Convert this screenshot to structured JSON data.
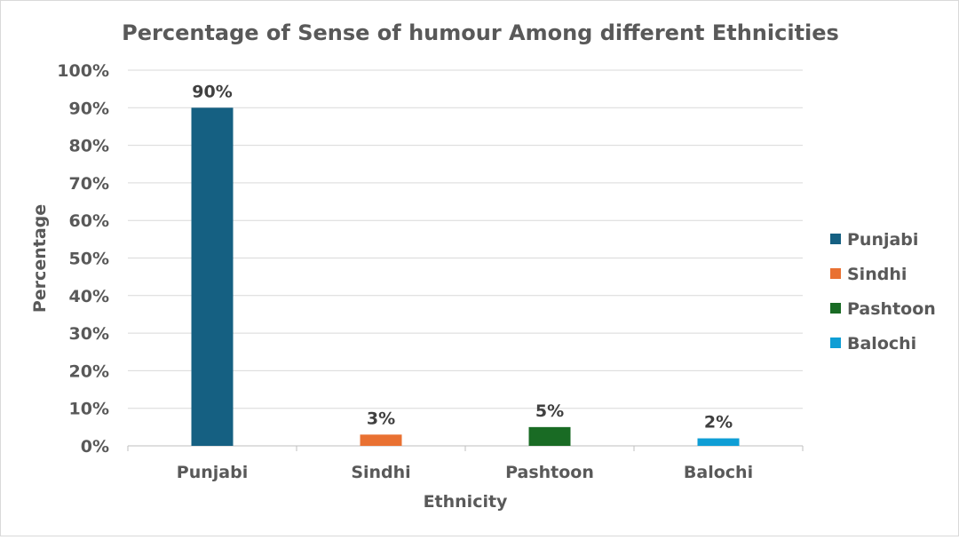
{
  "chart_data": {
    "type": "bar",
    "title": "Percentage of Sense of humour Among different Ethnicities",
    "xlabel": "Ethnicity",
    "ylabel": "Percentage",
    "categories": [
      "Punjabi",
      "Sindhi",
      "Pashtoon",
      "Balochi"
    ],
    "values": [
      90,
      3,
      5,
      2
    ],
    "value_labels": [
      "90%",
      "3%",
      "5%",
      "2%"
    ],
    "colors": [
      "#156082",
      "#E97132",
      "#196B24",
      "#0F9ED5"
    ],
    "ylim": [
      0,
      100
    ],
    "ytick_values": [
      0,
      10,
      20,
      30,
      40,
      50,
      60,
      70,
      80,
      90,
      100
    ],
    "ytick_labels": [
      "0%",
      "10%",
      "20%",
      "30%",
      "40%",
      "50%",
      "60%",
      "70%",
      "80%",
      "90%",
      "100%"
    ],
    "grid": true,
    "legend_position": "right",
    "legend": [
      "Punjabi",
      "Sindhi",
      "Pashtoon",
      "Balochi"
    ]
  }
}
